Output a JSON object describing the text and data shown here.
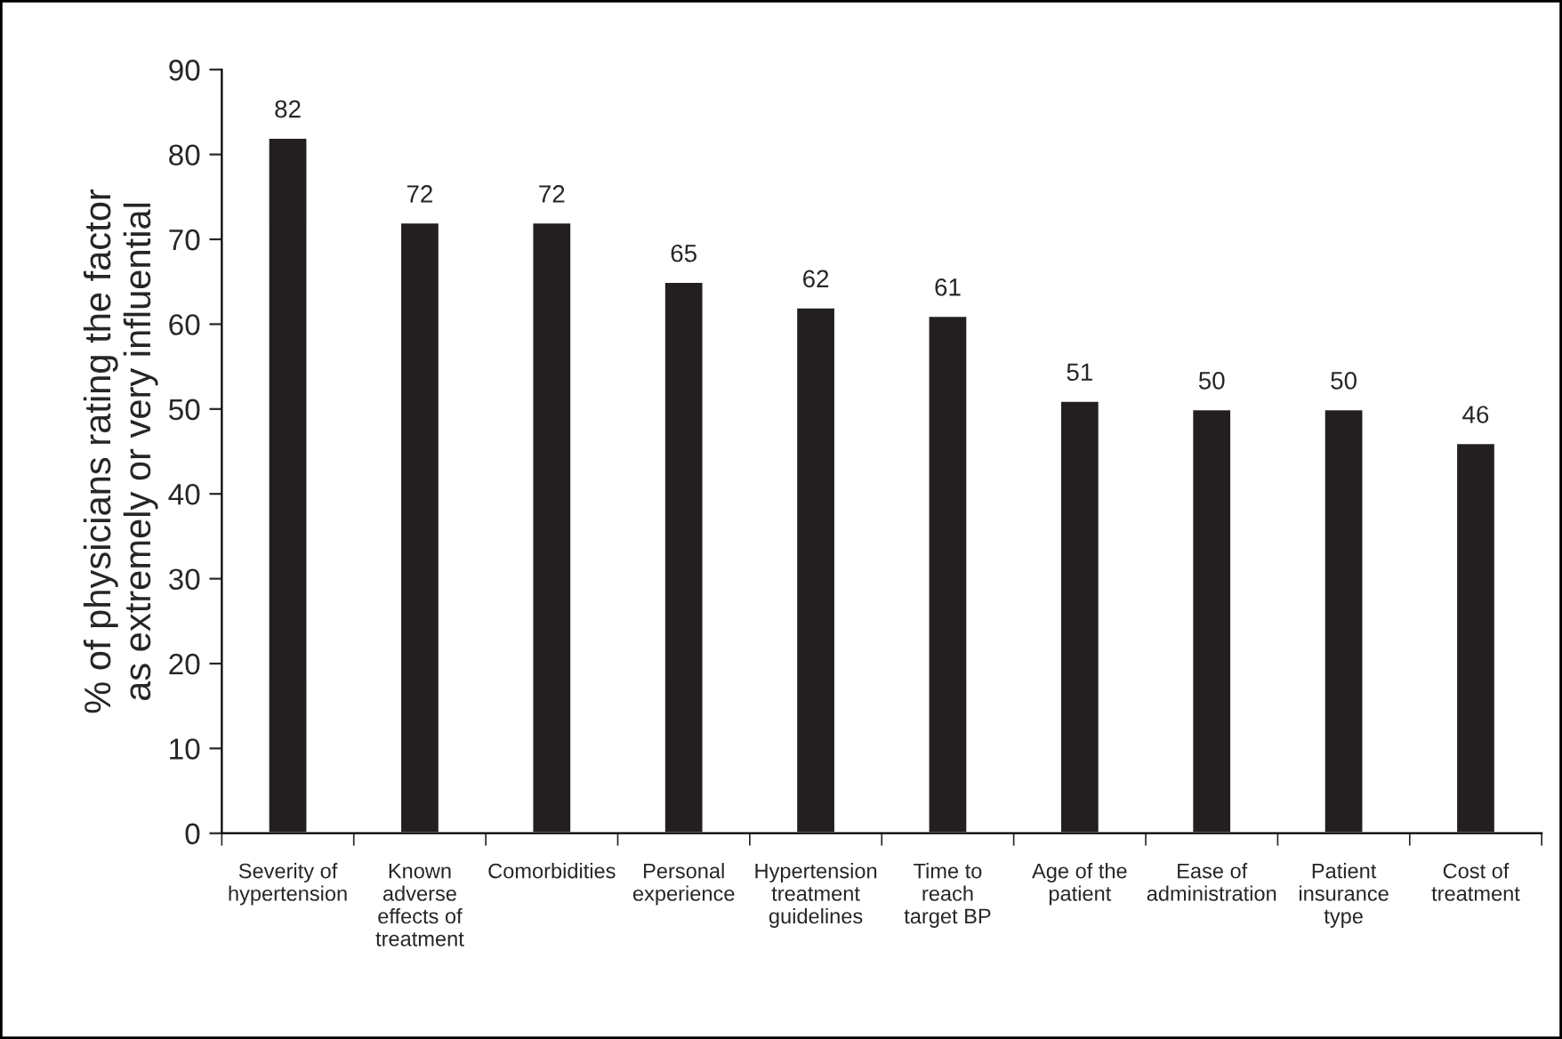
{
  "chart_data": {
    "type": "bar",
    "ylabel": "% of physicians rating the factor\nas extremely or very influential",
    "categories": [
      "Severity of\nhypertension",
      "Known\nadverse\neffects of\ntreatment",
      "Comorbidities",
      "Personal\nexperience",
      "Hypertension\ntreatment\nguidelines",
      "Time to\nreach\ntarget BP",
      "Age of the\npatient",
      "Ease of\nadministration",
      "Patient\ninsurance\ntype",
      "Cost of\ntreatment"
    ],
    "values": [
      82,
      72,
      72,
      65,
      62,
      61,
      51,
      50,
      50,
      46
    ],
    "color": "#231f20",
    "ylim": [
      0,
      90
    ],
    "yticks": [
      0,
      10,
      20,
      30,
      40,
      50,
      60,
      70,
      80,
      90
    ],
    "data_labels": true,
    "grid": false,
    "legend": false
  }
}
